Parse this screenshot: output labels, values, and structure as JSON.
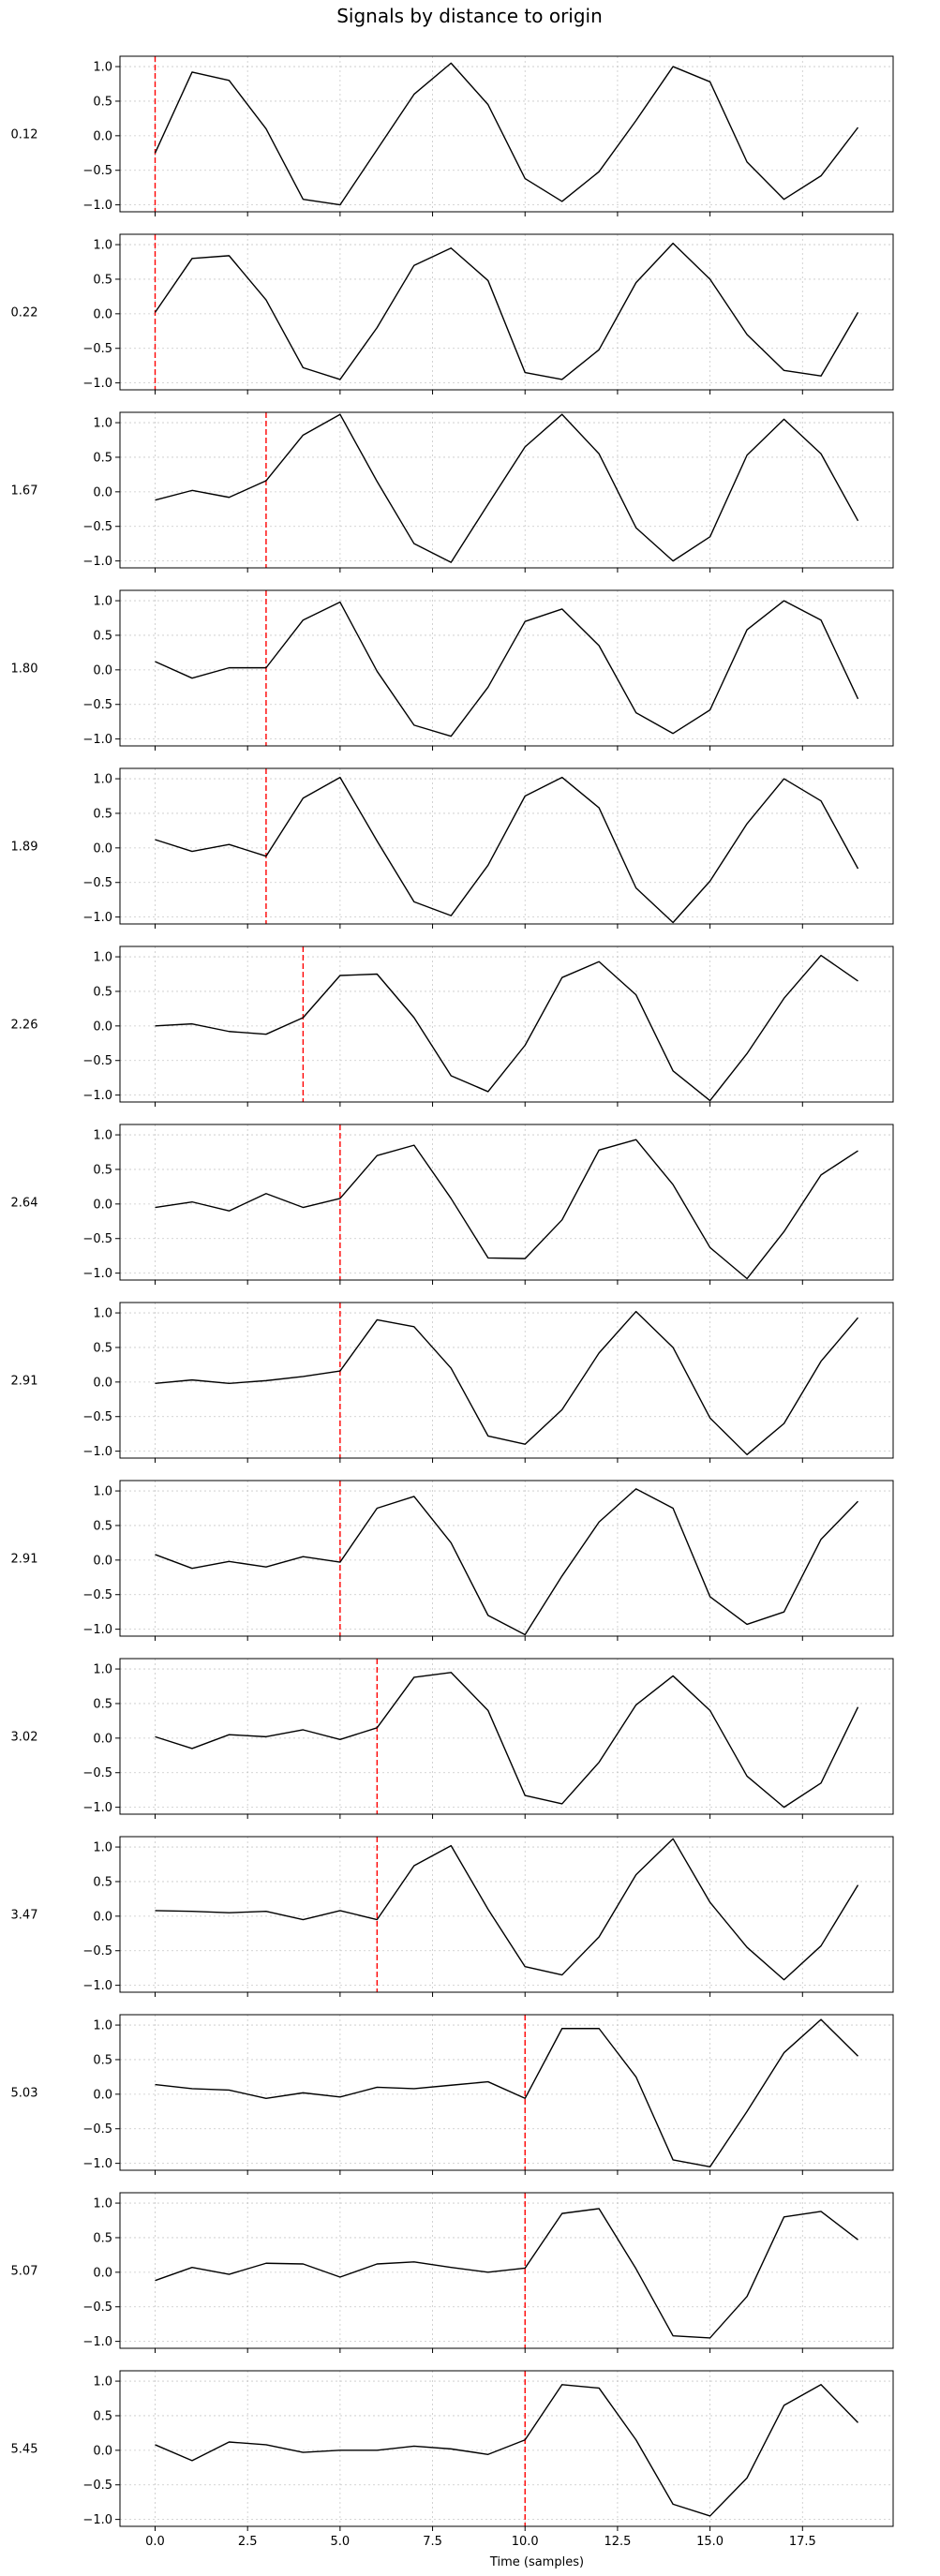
{
  "figure": {
    "title": "Signals by distance to origin",
    "xlabel": "Time (samples)"
  },
  "chart_data": {
    "type": "line",
    "title": "Signals by distance to origin",
    "xlabel": "Time (samples)",
    "ylabel": "",
    "x": [
      0,
      1,
      2,
      3,
      4,
      5,
      6,
      7,
      8,
      9,
      10,
      11,
      12,
      13,
      14,
      15,
      16,
      17,
      18,
      19
    ],
    "xlim": [
      -0.95,
      19.95
    ],
    "ylim": [
      -1.1,
      1.15
    ],
    "xticks": [
      0.0,
      2.5,
      5.0,
      7.5,
      10.0,
      12.5,
      15.0,
      17.5
    ],
    "xtick_labels": [
      "0.0",
      "2.5",
      "5.0",
      "7.5",
      "10.0",
      "12.5",
      "15.0",
      "17.5"
    ],
    "yticks": [
      -1.0,
      -0.5,
      0.0,
      0.5,
      1.0
    ],
    "ytick_labels": [
      "−1.0",
      "−0.5",
      "0.0",
      "0.5",
      "1.0"
    ],
    "grid": true,
    "line_color": "#000000",
    "marker_color": "#ff0000",
    "series": [
      {
        "label": "0.12",
        "onset": 0,
        "values": [
          -0.25,
          0.92,
          0.8,
          0.1,
          -0.92,
          -1.0,
          -0.2,
          0.6,
          1.05,
          0.45,
          -0.62,
          -0.95,
          -0.52,
          0.22,
          1.0,
          0.78,
          -0.38,
          -0.92,
          -0.58,
          0.12
        ]
      },
      {
        "label": "0.22",
        "onset": 0,
        "values": [
          0.02,
          0.8,
          0.84,
          0.2,
          -0.78,
          -0.95,
          -0.2,
          0.7,
          0.95,
          0.48,
          -0.85,
          -0.95,
          -0.52,
          0.45,
          1.02,
          0.5,
          -0.3,
          -0.82,
          -0.9,
          0.02
        ]
      },
      {
        "label": "1.67",
        "onset": 3,
        "values": [
          -0.12,
          0.02,
          -0.08,
          0.16,
          0.82,
          1.12,
          0.15,
          -0.75,
          -1.02,
          -0.18,
          0.65,
          1.12,
          0.55,
          -0.52,
          -1.0,
          -0.65,
          0.53,
          1.05,
          0.55,
          -0.42
        ]
      },
      {
        "label": "1.80",
        "onset": 3,
        "values": [
          0.12,
          -0.12,
          0.03,
          0.03,
          0.72,
          0.98,
          -0.02,
          -0.8,
          -0.96,
          -0.25,
          0.7,
          0.88,
          0.35,
          -0.62,
          -0.92,
          -0.58,
          0.58,
          1.0,
          0.72,
          -0.42
        ]
      },
      {
        "label": "1.89",
        "onset": 3,
        "values": [
          0.12,
          -0.05,
          0.05,
          -0.12,
          0.72,
          1.02,
          0.1,
          -0.78,
          -0.98,
          -0.25,
          0.75,
          1.02,
          0.58,
          -0.58,
          -1.08,
          -0.48,
          0.35,
          1.0,
          0.68,
          -0.3
        ]
      },
      {
        "label": "2.26",
        "onset": 4,
        "values": [
          0.0,
          0.03,
          -0.08,
          -0.12,
          0.12,
          0.73,
          0.75,
          0.12,
          -0.72,
          -0.95,
          -0.28,
          0.7,
          0.93,
          0.45,
          -0.65,
          -1.08,
          -0.4,
          0.4,
          1.02,
          0.65
        ]
      },
      {
        "label": "2.64",
        "onset": 5,
        "values": [
          -0.05,
          0.03,
          -0.1,
          0.15,
          -0.05,
          0.08,
          0.7,
          0.85,
          0.08,
          -0.78,
          -0.79,
          -0.23,
          0.78,
          0.93,
          0.28,
          -0.63,
          -1.08,
          -0.4,
          0.42,
          0.77
        ]
      },
      {
        "label": "2.91",
        "onset": 5,
        "values": [
          -0.02,
          0.03,
          -0.02,
          0.02,
          0.08,
          0.16,
          0.9,
          0.8,
          0.2,
          -0.78,
          -0.9,
          -0.4,
          0.42,
          1.02,
          0.5,
          -0.52,
          -1.05,
          -0.6,
          0.3,
          0.93
        ]
      },
      {
        "label": "2.91",
        "onset": 5,
        "values": [
          0.08,
          -0.12,
          -0.02,
          -0.1,
          0.05,
          -0.03,
          0.75,
          0.92,
          0.25,
          -0.8,
          -1.08,
          -0.23,
          0.55,
          1.03,
          0.75,
          -0.53,
          -0.93,
          -0.75,
          0.3,
          0.85
        ]
      },
      {
        "label": "3.02",
        "onset": 6,
        "values": [
          0.02,
          -0.15,
          0.05,
          0.02,
          0.12,
          -0.02,
          0.15,
          0.88,
          0.95,
          0.4,
          -0.83,
          -0.95,
          -0.35,
          0.48,
          0.9,
          0.4,
          -0.55,
          -1.0,
          -0.65,
          0.45
        ]
      },
      {
        "label": "3.47",
        "onset": 6,
        "values": [
          0.08,
          0.07,
          0.05,
          0.07,
          -0.05,
          0.08,
          -0.05,
          0.73,
          1.02,
          0.1,
          -0.73,
          -0.85,
          -0.3,
          0.6,
          1.12,
          0.2,
          -0.45,
          -0.92,
          -0.43,
          0.45
        ]
      },
      {
        "label": "5.03",
        "onset": 10,
        "values": [
          0.14,
          0.08,
          0.06,
          -0.06,
          0.02,
          -0.04,
          0.1,
          0.08,
          0.13,
          0.18,
          -0.06,
          0.95,
          0.95,
          0.25,
          -0.95,
          -1.05,
          -0.25,
          0.6,
          1.08,
          0.55
        ]
      },
      {
        "label": "5.07",
        "onset": 10,
        "values": [
          -0.12,
          0.07,
          -0.03,
          0.13,
          0.12,
          -0.07,
          0.12,
          0.15,
          0.07,
          0.0,
          0.06,
          0.85,
          0.92,
          0.05,
          -0.92,
          -0.95,
          -0.35,
          0.8,
          0.88,
          0.47
        ]
      },
      {
        "label": "5.45",
        "onset": 10,
        "values": [
          0.08,
          -0.15,
          0.12,
          0.08,
          -0.03,
          0.0,
          0.0,
          0.06,
          0.02,
          -0.06,
          0.15,
          0.95,
          0.9,
          0.15,
          -0.78,
          -0.95,
          -0.4,
          0.65,
          0.95,
          0.4
        ]
      }
    ]
  }
}
